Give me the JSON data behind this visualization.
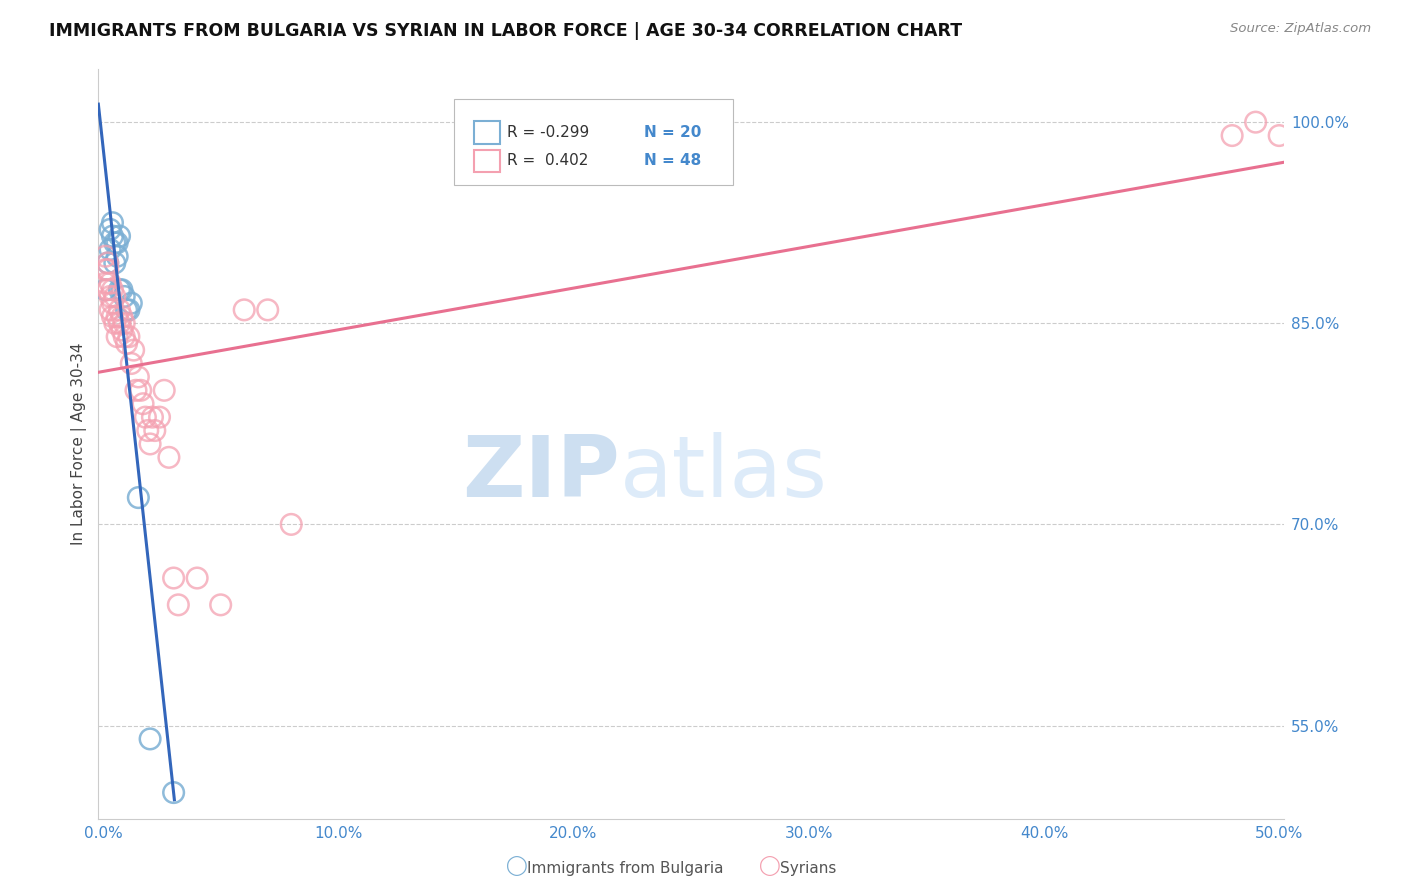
{
  "title": "IMMIGRANTS FROM BULGARIA VS SYRIAN IN LABOR FORCE | AGE 30-34 CORRELATION CHART",
  "source": "Source: ZipAtlas.com",
  "ylabel": "In Labor Force | Age 30-34",
  "ytick_labels": [
    "100.0%",
    "85.0%",
    "70.0%",
    "55.0%"
  ],
  "ytick_values": [
    1.0,
    0.85,
    0.7,
    0.55
  ],
  "ymin": 0.48,
  "ymax": 1.04,
  "xmin": -0.002,
  "xmax": 0.502,
  "legend_blue_r": "R = -0.299",
  "legend_blue_n": "N = 20",
  "legend_pink_r": "R =  0.402",
  "legend_pink_n": "N = 48",
  "legend_label_blue": "Immigrants from Bulgaria",
  "legend_label_pink": "Syrians",
  "color_blue": "#7BAFD4",
  "color_pink": "#F4A0B0",
  "color_trendline_blue": "#3366BB",
  "color_trendline_pink": "#E87090",
  "color_axis_labels": "#4488CC",
  "watermark_zip": "ZIP",
  "watermark_atlas": "atlas",
  "bulgaria_x": [
    0.001,
    0.002,
    0.003,
    0.003,
    0.004,
    0.004,
    0.005,
    0.005,
    0.006,
    0.006,
    0.007,
    0.007,
    0.008,
    0.009,
    0.01,
    0.011,
    0.012,
    0.015,
    0.02,
    0.03
  ],
  "bulgaria_y": [
    0.875,
    0.895,
    0.905,
    0.92,
    0.915,
    0.925,
    0.91,
    0.895,
    0.9,
    0.91,
    0.915,
    0.875,
    0.875,
    0.87,
    0.86,
    0.86,
    0.865,
    0.72,
    0.54,
    0.5
  ],
  "syria_x": [
    0.001,
    0.001,
    0.001,
    0.002,
    0.002,
    0.002,
    0.003,
    0.003,
    0.003,
    0.004,
    0.004,
    0.004,
    0.005,
    0.005,
    0.006,
    0.006,
    0.007,
    0.007,
    0.008,
    0.008,
    0.009,
    0.009,
    0.01,
    0.011,
    0.012,
    0.013,
    0.014,
    0.015,
    0.016,
    0.017,
    0.018,
    0.019,
    0.02,
    0.021,
    0.022,
    0.024,
    0.026,
    0.028,
    0.03,
    0.032,
    0.04,
    0.05,
    0.06,
    0.07,
    0.08,
    0.48,
    0.49,
    0.5
  ],
  "syria_y": [
    0.88,
    0.89,
    0.9,
    0.875,
    0.89,
    0.895,
    0.86,
    0.87,
    0.88,
    0.855,
    0.865,
    0.875,
    0.85,
    0.87,
    0.84,
    0.855,
    0.85,
    0.86,
    0.845,
    0.855,
    0.84,
    0.85,
    0.835,
    0.84,
    0.82,
    0.83,
    0.8,
    0.81,
    0.8,
    0.79,
    0.78,
    0.77,
    0.76,
    0.78,
    0.77,
    0.78,
    0.8,
    0.75,
    0.66,
    0.64,
    0.66,
    0.64,
    0.86,
    0.86,
    0.7,
    0.99,
    1.0,
    0.99
  ]
}
